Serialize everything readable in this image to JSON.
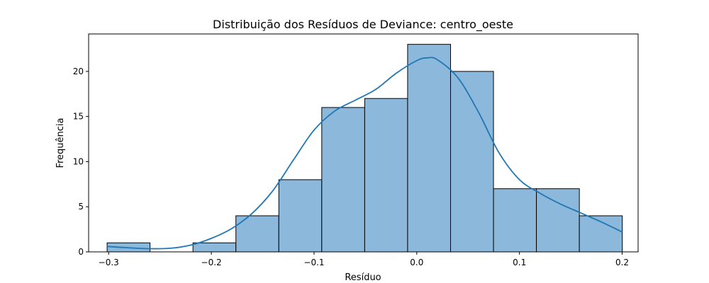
{
  "chart_data": {
    "type": "histogram",
    "title": "Distribuição dos Resíduos de Deviance: centro_oeste",
    "xlabel": "Resíduo",
    "ylabel": "Frequência",
    "xlim": [
      -0.3195,
      0.2155
    ],
    "ylim": [
      0,
      24.15
    ],
    "bin_edges": [
      -0.3015,
      -0.2597,
      -0.2179,
      -0.1761,
      -0.1343,
      -0.0925,
      -0.0507,
      -0.0089,
      0.0329,
      0.0747,
      0.1165,
      0.1583,
      0.2001
    ],
    "values": [
      1,
      0,
      1,
      4,
      8,
      16,
      17,
      23,
      20,
      7,
      7,
      4
    ],
    "x_ticks": [
      -0.3,
      -0.2,
      -0.1,
      0.0,
      0.1,
      0.2
    ],
    "x_tick_labels": [
      "−0.3",
      "−0.2",
      "−0.1",
      "0.0",
      "0.1",
      "0.2"
    ],
    "y_ticks": [
      0,
      5,
      10,
      15,
      20
    ],
    "y_tick_labels": [
      "0",
      "5",
      "10",
      "15",
      "20"
    ],
    "kde": {
      "x": [
        -0.3015,
        -0.28,
        -0.26,
        -0.24,
        -0.22,
        -0.2,
        -0.18,
        -0.16,
        -0.14,
        -0.12,
        -0.1,
        -0.08,
        -0.06,
        -0.04,
        -0.02,
        0.0,
        0.01,
        0.02,
        0.04,
        0.06,
        0.08,
        0.1,
        0.12,
        0.14,
        0.16,
        0.18,
        0.2001
      ],
      "y": [
        0.6,
        0.45,
        0.35,
        0.4,
        0.75,
        1.5,
        2.6,
        4.3,
        6.8,
        10.2,
        13.5,
        15.6,
        16.8,
        18.0,
        19.8,
        21.2,
        21.5,
        21.3,
        19.3,
        15.5,
        11.0,
        8.0,
        6.5,
        5.3,
        4.3,
        3.3,
        2.2
      ]
    },
    "bar_fill": "#8cb8db",
    "bar_edge": "#000000",
    "line_color": "#1f77b4",
    "grid": false
  }
}
